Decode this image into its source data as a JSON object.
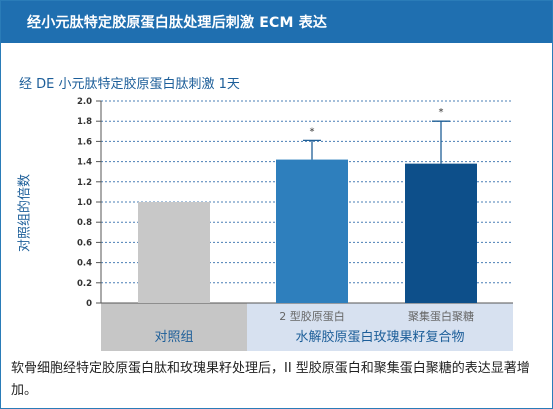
{
  "header": {
    "title": "经小元肽特定胶原蛋白肽处理后刺激 ECM 表达"
  },
  "caption": "软骨细胞经特定胶原蛋白肽和玫瑰果籽处理后，II 型胶原蛋白和聚集蛋白聚糖的表达显著增加。",
  "chart_data": {
    "type": "bar",
    "title": "经 DE 小元肽特定胶原蛋白肽刺激 1天",
    "ylabel": "对照组的倍数",
    "ylim": [
      0,
      2.0
    ],
    "yticks": [
      "0",
      "0.2",
      "0.4",
      "0.6",
      "0.8",
      "1.0",
      "1.2",
      "1.4",
      "1.6",
      "1.8",
      "2.0"
    ],
    "grid": true,
    "categories": [
      "",
      "2 型胶原蛋白",
      "聚集蛋白聚糖"
    ],
    "values": [
      1.0,
      1.42,
      1.38
    ],
    "errors": [
      0,
      0.19,
      0.42
    ],
    "significance": [
      "",
      "*",
      "*"
    ],
    "colors": [
      "#c8c8c8",
      "#2e7fbd",
      "#0d4f8a"
    ],
    "group_labels": [
      "对照组",
      "水解胶原蛋白玫瑰果籽复合物"
    ]
  }
}
